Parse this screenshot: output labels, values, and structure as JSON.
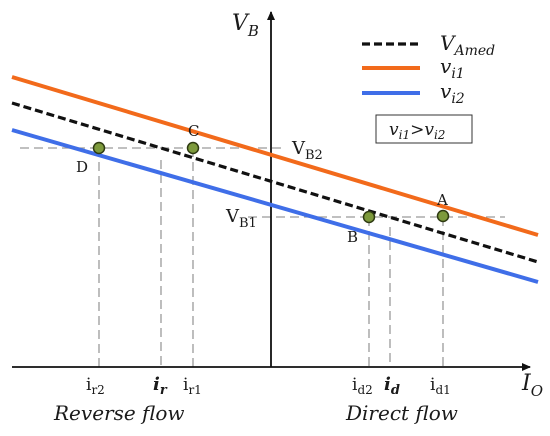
{
  "axes": {
    "y_label": "V",
    "y_sub": "B",
    "x_label": "I",
    "x_sub": "O"
  },
  "legend": {
    "items": [
      {
        "label": "V",
        "sub": "Amed",
        "color": "#111111",
        "style": "dashed"
      },
      {
        "label": "v",
        "sub": "i1",
        "color": "#f26a1b",
        "style": "solid"
      },
      {
        "label": "v",
        "sub": "i2",
        "color": "#3f6ee8",
        "style": "solid"
      }
    ],
    "condition": {
      "a": "v",
      "a_sub": "i1",
      "op": ">",
      "b": "v",
      "b_sub": "i2"
    }
  },
  "levels": {
    "vb2": {
      "label": "V",
      "sub": "B2"
    },
    "vb1": {
      "label": "V",
      "sub": "B1"
    }
  },
  "points": {
    "A": "A",
    "B": "B",
    "C": "C",
    "D": "D"
  },
  "x_ticks": {
    "ir2": {
      "label": "i",
      "sub": "r2"
    },
    "ir": {
      "label": "i",
      "sub": "r"
    },
    "ir1": {
      "label": "i",
      "sub": "r1"
    },
    "id2": {
      "label": "i",
      "sub": "d2"
    },
    "id": {
      "label": "i",
      "sub": "d"
    },
    "id1": {
      "label": "i",
      "sub": "d1"
    }
  },
  "regions": {
    "reverse": "Reverse flow",
    "direct": "Direct flow"
  },
  "colors": {
    "orange": "#f26a1b",
    "blue": "#3f6ee8",
    "black": "#111111",
    "point_fill": "#7d9a3c",
    "grid_dash": "#9a9a9a"
  }
}
